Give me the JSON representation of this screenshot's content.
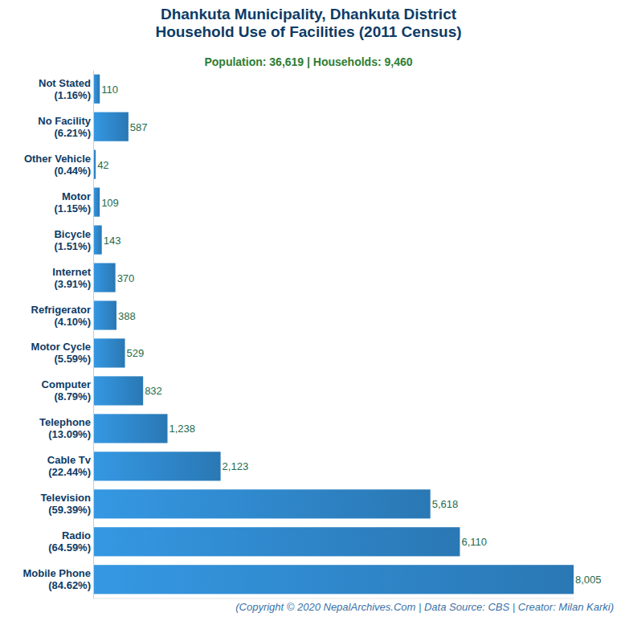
{
  "chart_data": {
    "type": "bar",
    "orientation": "horizontal",
    "title": "Dhankuta Municipality, Dhankuta District\nHousehold Use of Facilities (2011 Census)",
    "subtitle": "Population: 36,619 | Households: 9,460",
    "caption": "(Copyright © 2020 NepalArchives.Com | Data Source: CBS | Creator: Milan Karki)",
    "categories": [
      "Not Stated\n(1.16%)",
      "No Facility\n(6.21%)",
      "Other Vehicle\n(0.44%)",
      "Motor\n(1.15%)",
      "Bicycle\n(1.51%)",
      "Internet\n(3.91%)",
      "Refrigerator\n(4.10%)",
      "Motor Cycle\n(5.59%)",
      "Computer\n(8.79%)",
      "Telephone\n(13.09%)",
      "Cable Tv\n(22.44%)",
      "Television\n(59.39%)",
      "Radio\n(64.59%)",
      "Mobile Phone\n(84.62%)"
    ],
    "values": [
      110,
      587,
      42,
      109,
      143,
      370,
      388,
      529,
      832,
      1238,
      2123,
      5618,
      6110,
      8005
    ],
    "value_labels": [
      "110",
      "587",
      "42",
      "109",
      "143",
      "370",
      "388",
      "529",
      "832",
      "1,238",
      "2,123",
      "5,618",
      "6,110",
      "8,005"
    ],
    "xlim": [
      0,
      8005
    ],
    "color": "#2f86c8",
    "data_labels": true,
    "tick_labels": "y",
    "grid": false
  }
}
